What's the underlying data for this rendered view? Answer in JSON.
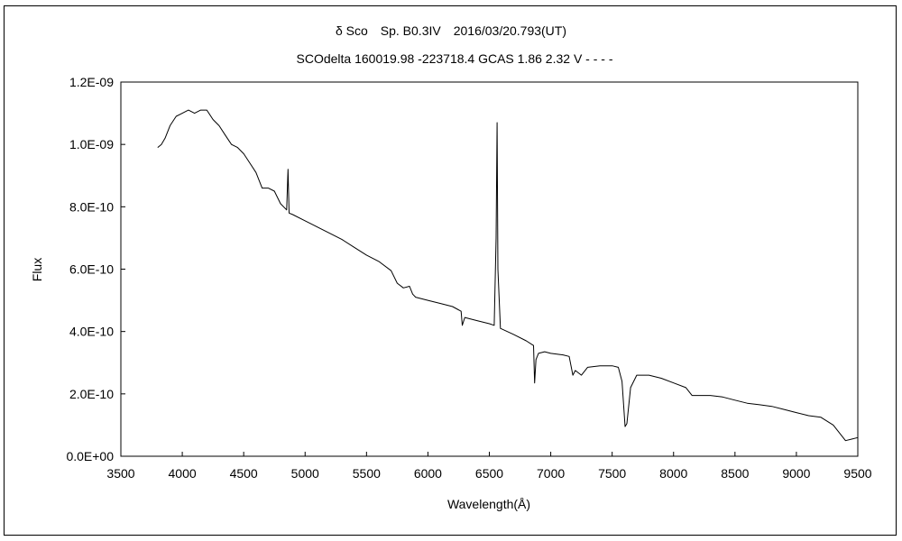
{
  "chart_data": {
    "type": "line",
    "title": "δ Sco Sp. B0.3IV 2016/03/20.793(UT)",
    "subtitle": "SCOdelta 160019.98 -223718.4 GCAS 1.86 2.32 V - - - -",
    "xlabel": "Wavelength(Å)",
    "ylabel": "Flux",
    "xlim": [
      3500,
      9500
    ],
    "ylim": [
      0,
      1.2e-09
    ],
    "x_ticks": [
      3500,
      4000,
      4500,
      5000,
      5500,
      6000,
      6500,
      7000,
      7500,
      8000,
      8500,
      9000,
      9500
    ],
    "x_tick_labels": [
      "3500",
      "4000",
      "4500",
      "5000",
      "5500",
      "6000",
      "6500",
      "7000",
      "7500",
      "8000",
      "8500",
      "9000",
      "9500"
    ],
    "y_ticks": [
      0,
      2e-10,
      4e-10,
      6e-10,
      8e-10,
      1e-09,
      1.2e-09
    ],
    "y_tick_labels": [
      "0.0E+00",
      "2.0E-10",
      "4.0E-10",
      "6.0E-10",
      "8.0E-10",
      "1.0E-09",
      "1.2E-09"
    ],
    "grid": false,
    "series_color": "#000000",
    "series": [
      {
        "x": [
          3800,
          3830,
          3860,
          3900,
          3950,
          4000,
          4050,
          4100,
          4150,
          4200,
          4250,
          4300,
          4350,
          4400,
          4450,
          4500,
          4550,
          4600,
          4630,
          4650,
          4700,
          4750,
          4800,
          4850,
          4861,
          4870,
          4900,
          5000,
          5100,
          5200,
          5300,
          5400,
          5500,
          5600,
          5700,
          5750,
          5800,
          5850,
          5876,
          5900,
          6000,
          6100,
          6200,
          6270,
          6280,
          6300,
          6400,
          6500,
          6540,
          6555,
          6563,
          6570,
          6590,
          6700,
          6800,
          6860,
          6869,
          6880,
          6900,
          6950,
          7000,
          7100,
          7150,
          7180,
          7200,
          7250,
          7300,
          7400,
          7500,
          7550,
          7580,
          7605,
          7620,
          7650,
          7700,
          7800,
          7900,
          8000,
          8100,
          8150,
          8200,
          8300,
          8400,
          8500,
          8600,
          8700,
          8800,
          8900,
          9000,
          9100,
          9200,
          9300,
          9350,
          9400,
          9450,
          9500
        ],
        "y": [
          9.9e-10,
          1e-09,
          1.02e-09,
          1.06e-09,
          1.09e-09,
          1.1e-09,
          1.11e-09,
          1.1e-09,
          1.11e-09,
          1.11e-09,
          1.08e-09,
          1.06e-09,
          1.03e-09,
          1e-09,
          9.9e-10,
          9.7e-10,
          9.4e-10,
          9.1e-10,
          8.8e-10,
          8.6e-10,
          8.6e-10,
          8.5e-10,
          8.1e-10,
          7.9e-10,
          9.2e-10,
          7.8e-10,
          7.75e-10,
          7.55e-10,
          7.35e-10,
          7.15e-10,
          6.95e-10,
          6.7e-10,
          6.45e-10,
          6.25e-10,
          5.95e-10,
          5.55e-10,
          5.4e-10,
          5.45e-10,
          5.2e-10,
          5.1e-10,
          5e-10,
          4.9e-10,
          4.8e-10,
          4.65e-10,
          4.2e-10,
          4.45e-10,
          4.35e-10,
          4.25e-10,
          4.2e-10,
          7e-10,
          1.07e-09,
          6e-10,
          4.1e-10,
          3.9e-10,
          3.7e-10,
          3.55e-10,
          2.35e-10,
          3.1e-10,
          3.3e-10,
          3.35e-10,
          3.3e-10,
          3.25e-10,
          3.2e-10,
          2.6e-10,
          2.75e-10,
          2.6e-10,
          2.85e-10,
          2.9e-10,
          2.9e-10,
          2.85e-10,
          2.4e-10,
          9.5e-11,
          1.05e-10,
          2.2e-10,
          2.6e-10,
          2.6e-10,
          2.5e-10,
          2.35e-10,
          2.2e-10,
          1.95e-10,
          1.95e-10,
          1.95e-10,
          1.9e-10,
          1.8e-10,
          1.7e-10,
          1.65e-10,
          1.6e-10,
          1.5e-10,
          1.4e-10,
          1.3e-10,
          1.25e-10,
          1e-10,
          7.5e-11,
          5e-11,
          5.5e-11,
          6e-11
        ]
      }
    ]
  }
}
